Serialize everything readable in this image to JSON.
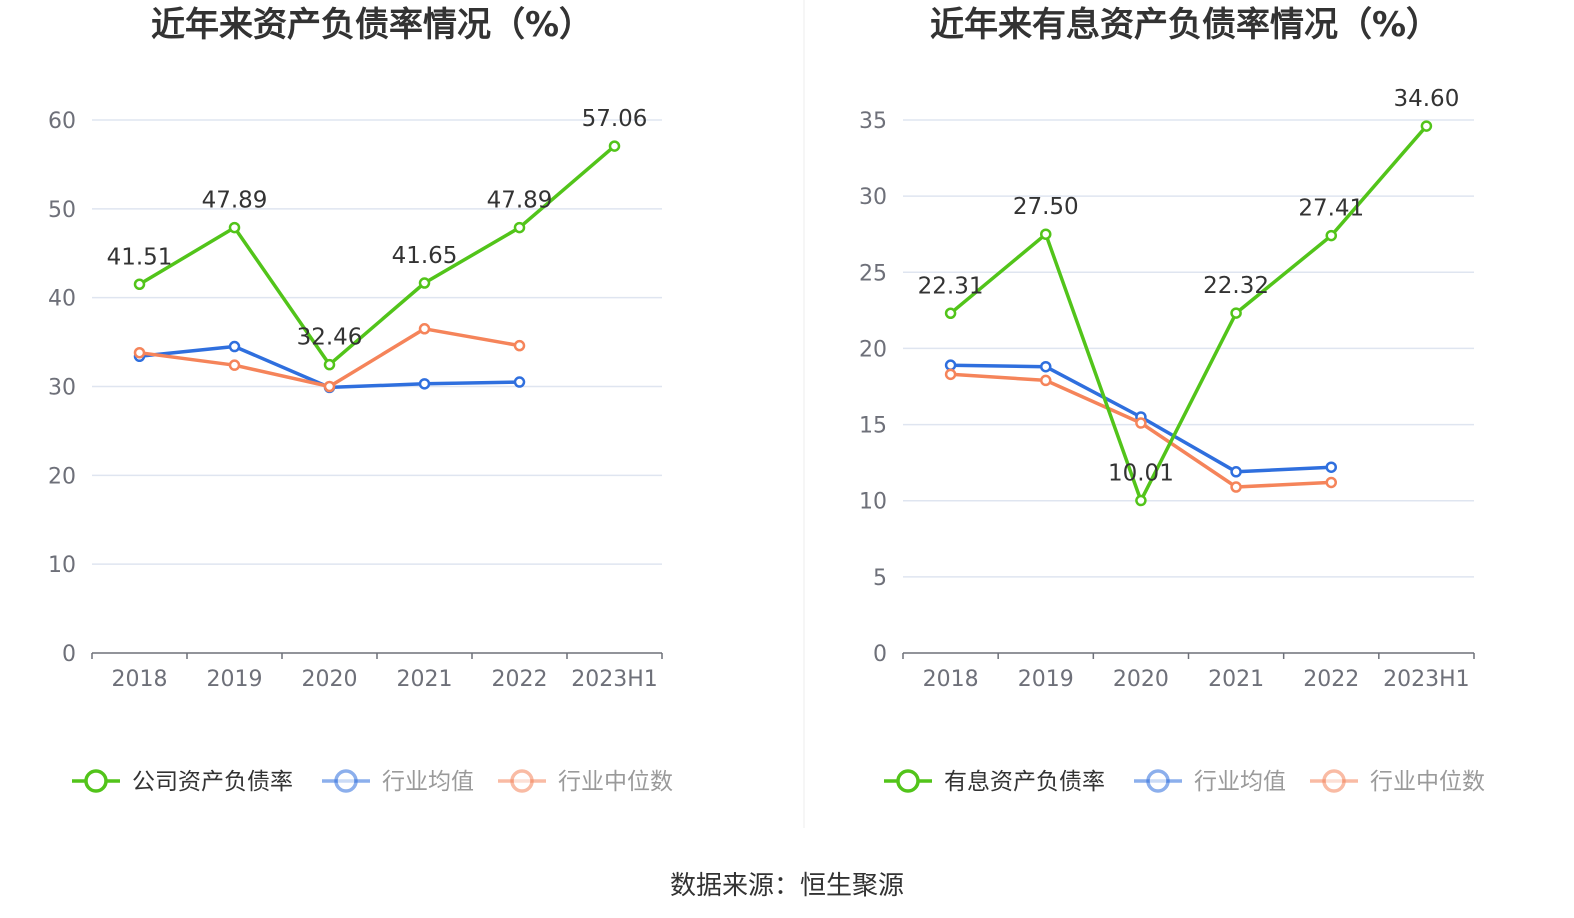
{
  "colors": {
    "company": "#52c41a",
    "industry_avg": "#2f6fde",
    "industry_median": "#f5845a",
    "grid": "#dfe5f0",
    "axis": "#6e7079"
  },
  "source": "数据来源：恒生聚源",
  "chart_data": [
    {
      "type": "line",
      "title": "近年来资产负债率情况（%）",
      "categories": [
        "2018",
        "2019",
        "2020",
        "2021",
        "2022",
        "2023H1"
      ],
      "yticks": [
        "0",
        "10",
        "20",
        "30",
        "40",
        "50",
        "60"
      ],
      "ylim": [
        0,
        60
      ],
      "series": [
        {
          "name": "公司资产负债率",
          "key": "company",
          "values": [
            41.51,
            47.89,
            32.46,
            41.65,
            47.89,
            57.06
          ],
          "labels": [
            "41.51",
            "47.89",
            "32.46",
            "41.65",
            "47.89",
            "57.06"
          ]
        },
        {
          "name": "行业均值",
          "key": "industry_avg",
          "values": [
            33.4,
            34.5,
            29.9,
            30.3,
            30.5,
            null
          ]
        },
        {
          "name": "行业中位数",
          "key": "industry_median",
          "values": [
            33.8,
            32.4,
            30.0,
            36.5,
            34.6,
            null
          ]
        }
      ],
      "legend": [
        "公司资产负债率",
        "行业均值",
        "行业中位数"
      ]
    },
    {
      "type": "line",
      "title": "近年来有息资产负债率情况（%）",
      "categories": [
        "2018",
        "2019",
        "2020",
        "2021",
        "2022",
        "2023H1"
      ],
      "yticks": [
        "0",
        "5",
        "10",
        "15",
        "20",
        "25",
        "30",
        "35"
      ],
      "ylim": [
        0,
        35
      ],
      "series": [
        {
          "name": "有息资产负债率",
          "key": "company",
          "values": [
            22.31,
            27.5,
            10.01,
            22.32,
            27.41,
            34.6
          ],
          "labels": [
            "22.31",
            "27.50",
            "10.01",
            "22.32",
            "27.41",
            "34.60"
          ]
        },
        {
          "name": "行业均值",
          "key": "industry_avg",
          "values": [
            18.9,
            18.8,
            15.5,
            11.9,
            12.2,
            null
          ]
        },
        {
          "name": "行业中位数",
          "key": "industry_median",
          "values": [
            18.3,
            17.9,
            15.1,
            10.9,
            11.2,
            null
          ]
        }
      ],
      "legend": [
        "有息资产负债率",
        "行业均值",
        "行业中位数"
      ]
    }
  ]
}
